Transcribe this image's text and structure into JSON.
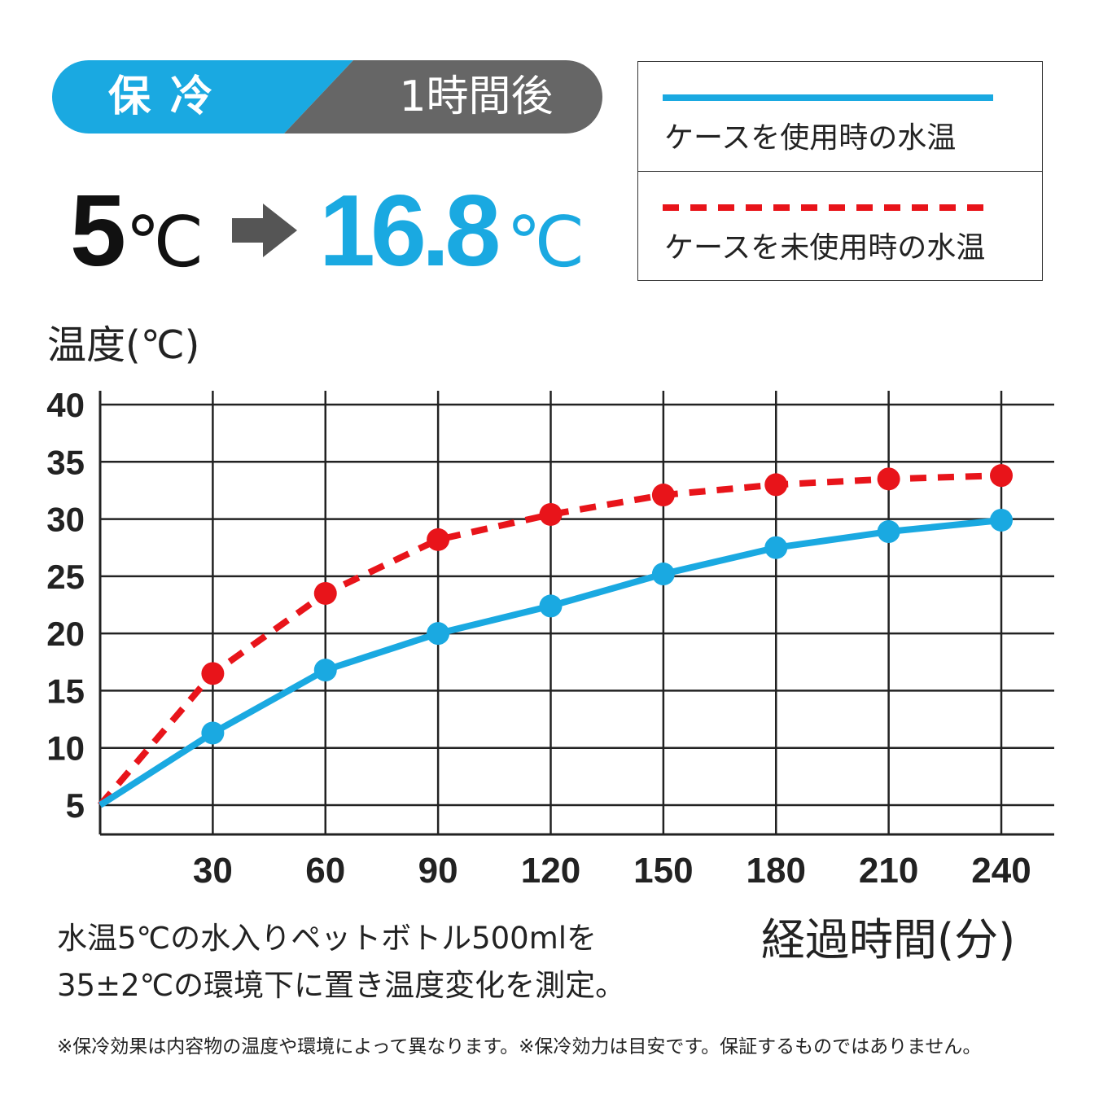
{
  "banner": {
    "title": "保冷",
    "subtitle": "1時間後",
    "colors": {
      "left": "#1aa9e1",
      "right": "#666666"
    }
  },
  "headline": {
    "start_value": "5",
    "start_unit": "℃",
    "arrow_icon": "arrow-right-icon",
    "end_value": "16.8",
    "end_unit": "℃"
  },
  "chart_data": {
    "type": "line",
    "ylabel": "温度(℃)",
    "xlabel": "経過時間(分)",
    "x": [
      0,
      30,
      60,
      90,
      120,
      150,
      180,
      210,
      240
    ],
    "x_ticks": [
      30,
      60,
      90,
      120,
      150,
      180,
      210,
      240
    ],
    "y_ticks": [
      5,
      10,
      15,
      20,
      25,
      30,
      35,
      40
    ],
    "xlim": [
      0,
      255
    ],
    "ylim": [
      2.5,
      41.5
    ],
    "grid": true,
    "legend_position": "top-right",
    "series": [
      {
        "name": "ケースを使用時の水温",
        "color": "#1aa9e1",
        "style": "solid",
        "values": [
          5,
          11.3,
          16.8,
          20.0,
          22.4,
          25.2,
          27.5,
          28.9,
          29.9
        ]
      },
      {
        "name": "ケースを未使用時の水温",
        "color": "#e8141a",
        "style": "dashed",
        "values": [
          5,
          16.5,
          23.5,
          28.2,
          30.4,
          32.1,
          33.0,
          33.5,
          33.8
        ]
      }
    ]
  },
  "notes": {
    "line1": "水温5℃の水入りペットボトル500mlを",
    "line2": "35±2℃の環境下に置き温度変化を測定。",
    "footnote": "※保冷効果は内容物の温度や環境によって異なります。※保冷効力は目安です。保証するものではありません。"
  }
}
